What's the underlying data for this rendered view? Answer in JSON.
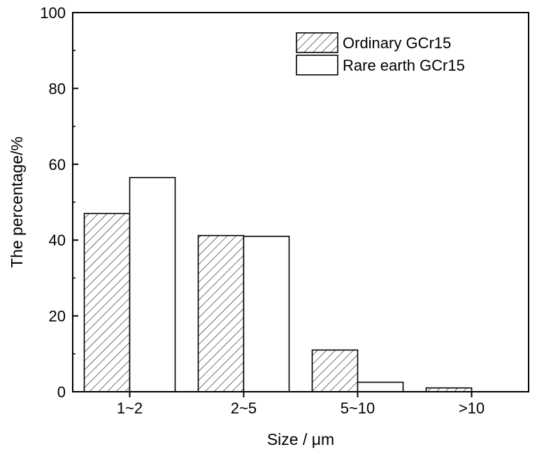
{
  "chart_data": {
    "type": "bar",
    "title": "",
    "xlabel": "Size / μm",
    "ylabel": "The percentage/%",
    "categories": [
      "1~2",
      "2~5",
      "5~10",
      ">10"
    ],
    "series": [
      {
        "name": "Ordinary GCr15",
        "values": [
          47,
          41.2,
          11,
          1
        ],
        "fill": "hatched"
      },
      {
        "name": "Rare earth GCr15",
        "values": [
          56.5,
          41,
          2.5,
          0
        ],
        "fill": "white"
      }
    ],
    "ylim": [
      0,
      100
    ],
    "yticks": [
      0,
      20,
      40,
      60,
      80,
      100
    ],
    "grid": false,
    "legend_position": "top-right",
    "colors": {
      "stroke": "#000000",
      "background": "#ffffff"
    }
  }
}
